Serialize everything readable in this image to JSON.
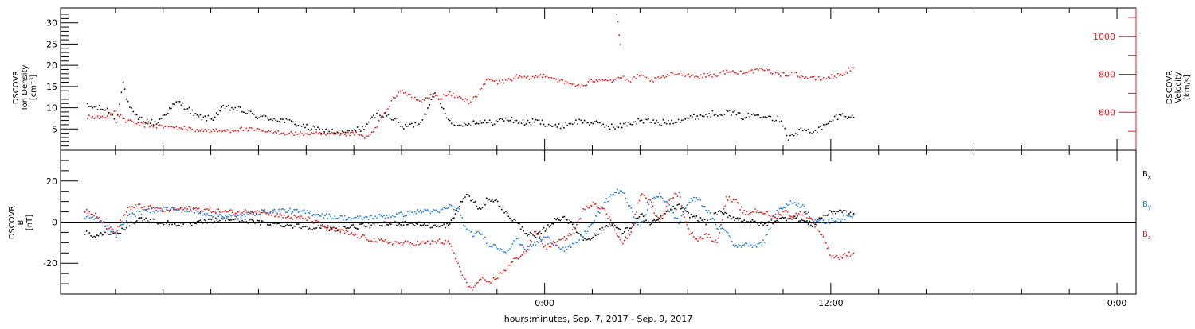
{
  "chart_data": [
    {
      "panel": "top",
      "type": "scatter",
      "ylabel_lines": [
        "DSCOVR",
        "Ion Density",
        "[cm⁻³]"
      ],
      "y2label_lines": [
        "DSCOVR",
        "Velocity",
        "[km/s]"
      ],
      "yticks": [
        5,
        10,
        15,
        20,
        25,
        30
      ],
      "y_minor_ticks": [
        1,
        2,
        3,
        4,
        6,
        7,
        8,
        9,
        11,
        12,
        13,
        14,
        16,
        17,
        18,
        19,
        21,
        22,
        23,
        24,
        26,
        27,
        28,
        29,
        31,
        32
      ],
      "y2ticks": [
        600,
        800,
        1000
      ],
      "y2_minor_ticks": [
        500,
        700,
        900,
        1100
      ],
      "ylim": [
        0,
        33.5
      ],
      "y2lim": [
        400,
        1150
      ],
      "colors": {
        "density": "#000000",
        "velocity": "#e02020"
      },
      "series": [
        {
          "name": "Ion Density",
          "axis": "left",
          "color": "#000000",
          "x": [
            -19.2,
            -18.7,
            -18.3,
            -18.0,
            -17.7,
            -17.5,
            -17.2,
            -17.0,
            -16.7,
            -16.3,
            -15.9,
            -15.4,
            -15.0,
            -14.6,
            -14.0,
            -13.5,
            -13.0,
            -12.5,
            -12.0,
            -11.3,
            -10.5,
            -10.0,
            -9.6,
            -9.0,
            -8.3,
            -7.6,
            -7.0,
            -6.3,
            -6.0,
            -5.6,
            -5.3,
            -5.0,
            -4.7,
            -4.4,
            -4.0,
            -3.6,
            -3.2,
            -2.8,
            -2.4,
            -2.0,
            -1.6,
            -1.2,
            -0.8,
            -0.4,
            0.0,
            0.5,
            1.0,
            1.5,
            2.0,
            2.5,
            3.0,
            3.5,
            3.9,
            4.4,
            4.8,
            5.3,
            5.8,
            6.3,
            6.8,
            7.3,
            7.8,
            8.3,
            8.8,
            9.3,
            9.6,
            9.9,
            10.2,
            10.5,
            10.8,
            11.1,
            11.4,
            11.8,
            12.2,
            12.6,
            13.0
          ],
          "y": [
            10.5,
            10,
            9.5,
            7,
            16,
            11,
            8,
            7.5,
            7,
            6.5,
            9,
            11.5,
            10,
            8,
            7.5,
            10,
            10,
            9,
            8,
            7.5,
            6.5,
            5.5,
            5,
            4.5,
            4.2,
            5.5,
            9,
            7.5,
            5.5,
            6,
            6.5,
            9,
            14,
            11,
            7,
            6,
            6.5,
            7,
            6.5,
            7,
            7.5,
            7,
            6.5,
            7,
            6.5,
            5.5,
            6.5,
            7,
            6.5,
            6,
            5.5,
            6.5,
            7,
            7,
            6.5,
            7,
            7.5,
            8,
            8.5,
            9,
            9,
            8,
            8.5,
            8.5,
            7.5,
            7.5,
            3,
            4,
            5,
            4.5,
            5,
            6,
            8,
            8.5,
            7.5
          ]
        },
        {
          "name": "Velocity",
          "axis": "right",
          "color": "#e02020",
          "x": [
            -19.2,
            -18.7,
            -18.3,
            -18.0,
            -17.6,
            -17.2,
            -16.8,
            -16.3,
            -15.8,
            -15.2,
            -14.6,
            -14.0,
            -13.4,
            -12.8,
            -12.2,
            -11.6,
            -11.0,
            -10.4,
            -9.8,
            -9.2,
            -8.6,
            -8.0,
            -7.5,
            -7.2,
            -6.9,
            -6.6,
            -6.3,
            -6.0,
            -5.6,
            -5.2,
            -4.8,
            -4.4,
            -4.0,
            -3.6,
            -3.2,
            -2.8,
            -2.4,
            -2.0,
            -1.6,
            -1.2,
            -0.8,
            -0.4,
            0.0,
            0.4,
            0.8,
            1.2,
            1.6,
            2.0,
            2.4,
            2.8,
            3.2,
            3.5,
            3.8,
            4.1,
            4.4,
            4.8,
            5.2,
            5.6,
            6.0,
            6.4,
            6.8,
            7.2,
            7.6,
            8.0,
            8.4,
            8.8,
            9.2,
            9.6,
            10.0,
            10.4,
            10.8,
            11.2,
            11.6,
            12.0,
            12.4,
            12.8,
            13.0
          ],
          "y": [
            580,
            575,
            590,
            600,
            560,
            545,
            535,
            530,
            525,
            520,
            510,
            505,
            505,
            515,
            510,
            500,
            495,
            490,
            490,
            485,
            485,
            490,
            470,
            500,
            570,
            620,
            690,
            720,
            680,
            660,
            690,
            680,
            700,
            680,
            660,
            700,
            780,
            760,
            770,
            790,
            780,
            790,
            800,
            780,
            760,
            750,
            740,
            770,
            780,
            770,
            790,
            760,
            790,
            790,
            770,
            780,
            800,
            810,
            800,
            790,
            800,
            800,
            820,
            810,
            820,
            820,
            830,
            810,
            800,
            810,
            790,
            780,
            780,
            790,
            800,
            830,
            830
          ]
        }
      ]
    },
    {
      "panel": "bottom",
      "type": "scatter",
      "ylabel_lines": [
        "DSCOVR",
        "B",
        "[nT]"
      ],
      "xlabel": "hours:minutes, Sep.  7, 2017 - Sep.  9, 2017",
      "xticks": [
        {
          "x": 0,
          "label": "0:00"
        },
        {
          "x": 12,
          "label": "12:00"
        },
        {
          "x": 24,
          "label": "0:00"
        }
      ],
      "x_minor_ticks": [
        -18,
        -16,
        -14,
        -12,
        -10,
        -8,
        -6,
        -4,
        -2,
        2,
        4,
        6,
        8,
        10,
        14,
        16,
        18,
        20,
        22
      ],
      "yticks": [
        -20,
        0,
        20
      ],
      "y_minor_ticks": [
        -35,
        -30,
        -25,
        -15,
        -10,
        -5,
        5,
        10,
        15,
        25,
        30,
        35
      ],
      "ylim": [
        -35,
        35
      ],
      "xlim": [
        -20.3,
        24.8
      ],
      "zero_line": 0,
      "colors": {
        "bx": "#000000",
        "by": "#1e7be0",
        "bz": "#e02020"
      },
      "series": [
        {
          "name": "Bx",
          "color": "#000000",
          "label_base": "B",
          "label_sub": "x",
          "x": [
            -19.3,
            -18.8,
            -18.4,
            -18.0,
            -17.5,
            -17.0,
            -16.5,
            -16.0,
            -15.0,
            -14.0,
            -13.0,
            -12.0,
            -11.0,
            -10.0,
            -9.0,
            -8.0,
            -7.0,
            -6.0,
            -5.0,
            -4.5,
            -4.0,
            -3.6,
            -3.3,
            -3.0,
            -2.7,
            -2.4,
            -2.0,
            -1.6,
            -1.2,
            -0.8,
            -0.4,
            0.0,
            0.4,
            0.8,
            1.2,
            1.6,
            2.0,
            2.4,
            2.8,
            3.2,
            3.6,
            4.0,
            4.4,
            4.8,
            5.2,
            5.6,
            6.0,
            6.4,
            6.8,
            7.2,
            7.6,
            8.0,
            8.4,
            8.8,
            9.2,
            9.6,
            10.0,
            10.4,
            10.8,
            11.2,
            11.6,
            12.0,
            12.4,
            12.8,
            13.0
          ],
          "y": [
            -5,
            -7,
            -4,
            -6,
            -1,
            2,
            1,
            0,
            -1,
            1,
            2,
            0,
            -1,
            -2,
            -3,
            -2,
            -1,
            0,
            -1,
            -2,
            -1,
            8,
            14,
            10,
            6,
            12,
            10,
            4,
            0,
            -5,
            -7,
            -3,
            1,
            3,
            -2,
            -8,
            -7,
            -3,
            0,
            -5,
            -2,
            4,
            -1,
            2,
            6,
            8,
            4,
            2,
            0,
            5,
            4,
            2,
            1,
            0,
            -1,
            1,
            2,
            3,
            1,
            -1,
            3,
            5,
            6,
            4,
            3
          ]
        },
        {
          "name": "By",
          "color": "#1e7be0",
          "label_base": "B",
          "label_sub": "y",
          "x": [
            -19.3,
            -18.8,
            -18.4,
            -18.0,
            -17.5,
            -17.0,
            -16.5,
            -16.0,
            -15.0,
            -14.0,
            -13.0,
            -12.0,
            -11.0,
            -10.0,
            -9.0,
            -8.0,
            -7.0,
            -6.0,
            -5.0,
            -4.5,
            -4.0,
            -3.6,
            -3.3,
            -3.0,
            -2.7,
            -2.4,
            -2.0,
            -1.6,
            -1.2,
            -0.8,
            -0.4,
            0.0,
            0.4,
            0.8,
            1.2,
            1.6,
            2.0,
            2.4,
            2.8,
            3.2,
            3.6,
            4.0,
            4.4,
            4.8,
            5.2,
            5.6,
            6.0,
            6.4,
            6.8,
            7.2,
            7.6,
            8.0,
            8.4,
            8.8,
            9.2,
            9.6,
            10.0,
            10.4,
            10.8,
            11.2,
            11.6,
            12.0,
            12.4,
            12.8,
            13.0
          ],
          "y": [
            3,
            2,
            -2,
            -5,
            3,
            5,
            6,
            7,
            6,
            4,
            3,
            5,
            6,
            5,
            3,
            2,
            3,
            4,
            6,
            5,
            8,
            6,
            -4,
            -6,
            -5,
            -10,
            -12,
            -14,
            -8,
            -13,
            -10,
            -7,
            -10,
            -13,
            -11,
            -6,
            0,
            8,
            14,
            16,
            6,
            -2,
            10,
            14,
            8,
            0,
            10,
            12,
            6,
            -2,
            -4,
            -12,
            -10,
            -11,
            -9,
            4,
            8,
            10,
            8,
            2,
            0,
            1,
            2,
            3,
            4
          ]
        },
        {
          "name": "Bz",
          "color": "#e02020",
          "label_base": "B",
          "label_sub": "z",
          "x": [
            -19.3,
            -18.8,
            -18.4,
            -18.0,
            -17.5,
            -17.0,
            -16.5,
            -16.0,
            -15.0,
            -14.0,
            -13.0,
            -12.0,
            -11.0,
            -10.0,
            -9.0,
            -8.0,
            -7.0,
            -6.0,
            -5.0,
            -4.5,
            -4.0,
            -3.6,
            -3.3,
            -3.0,
            -2.7,
            -2.4,
            -2.0,
            -1.6,
            -1.2,
            -0.8,
            -0.4,
            0.0,
            0.4,
            0.8,
            1.2,
            1.6,
            2.0,
            2.4,
            2.8,
            3.2,
            3.6,
            4.0,
            4.4,
            4.8,
            5.2,
            5.6,
            6.0,
            6.4,
            6.8,
            7.2,
            7.6,
            8.0,
            8.4,
            8.8,
            9.2,
            9.6,
            10.0,
            10.4,
            10.8,
            11.2,
            11.6,
            12.0,
            12.4,
            12.8,
            13.0
          ],
          "y": [
            6,
            4,
            -2,
            -4,
            7,
            8,
            7,
            6,
            7,
            6,
            5,
            6,
            3,
            2,
            -3,
            -6,
            -9,
            -10,
            -10,
            -9,
            -10,
            -22,
            -30,
            -32,
            -27,
            -30,
            -26,
            -22,
            -17,
            -14,
            -4,
            -12,
            -10,
            -8,
            -4,
            6,
            10,
            7,
            0,
            -10,
            -5,
            14,
            10,
            0,
            12,
            14,
            -4,
            -8,
            -6,
            -10,
            12,
            10,
            4,
            6,
            5,
            2,
            6,
            3,
            5,
            1,
            -6,
            -16,
            -17,
            -15,
            -14
          ]
        }
      ]
    }
  ]
}
